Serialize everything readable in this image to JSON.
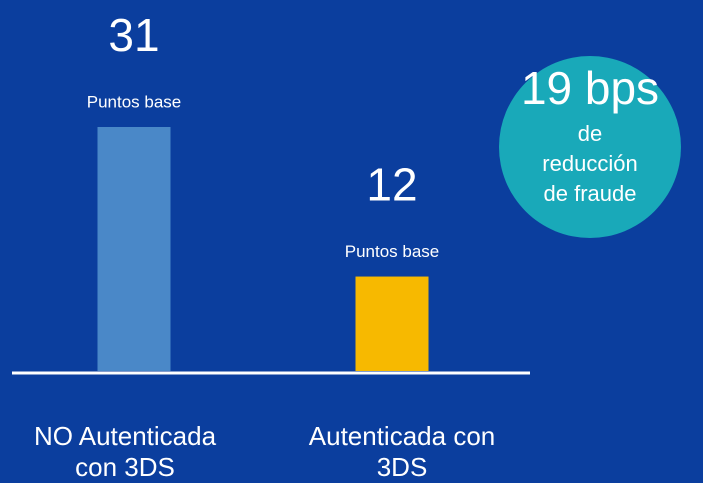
{
  "chart_data": {
    "type": "bar",
    "categories": [
      "NO Autenticada con 3DS",
      "Autenticada con 3DS"
    ],
    "values": [
      31,
      12
    ],
    "unit_label": "Puntos base",
    "colors": [
      "#4a88c8",
      "#f7b900"
    ],
    "annotation": {
      "headline": "19 bps",
      "lines": [
        "de",
        "reducción",
        "de fraude"
      ],
      "color": "#19a9b9"
    }
  }
}
